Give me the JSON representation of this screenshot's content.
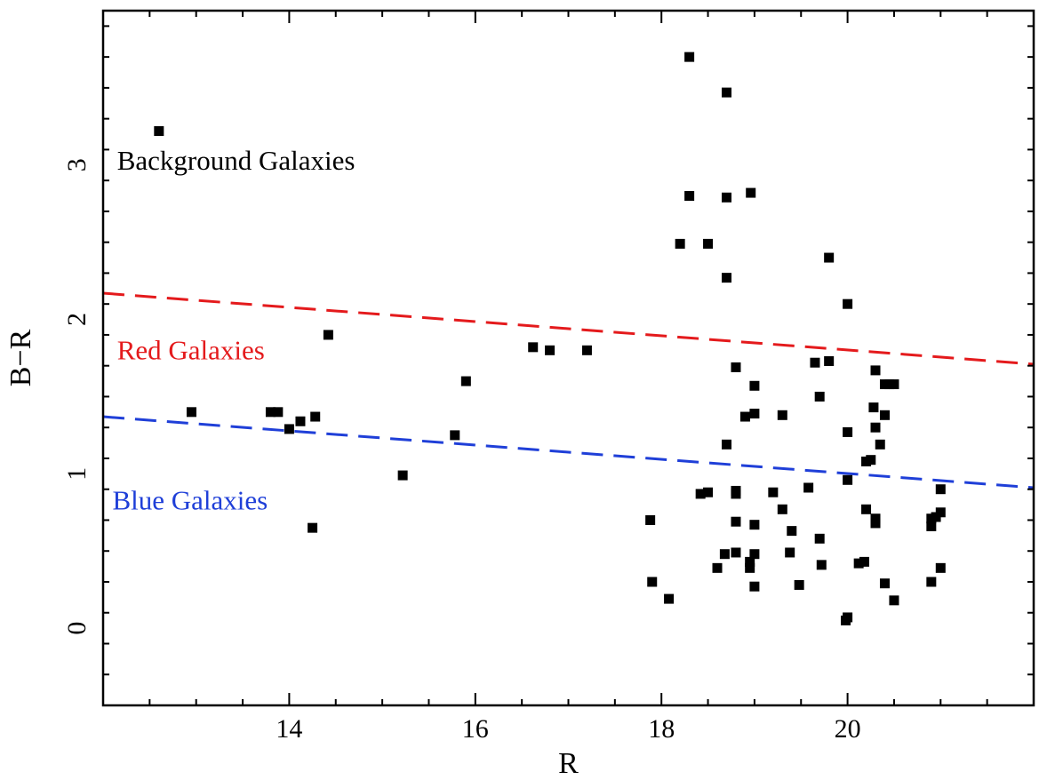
{
  "chart_data": {
    "type": "scatter",
    "xlabel": "R",
    "ylabel": "B−R",
    "xlim": [
      12.0,
      22.0
    ],
    "ylim": [
      -0.5,
      4.0
    ],
    "xticks": [
      14,
      16,
      18,
      20
    ],
    "yticks": [
      0,
      1,
      2,
      3
    ],
    "x_minor_step": 0.5,
    "y_minor_step": 0.2,
    "grid": false,
    "annotations": [
      {
        "name": "background-galaxies-label",
        "text": "Background Galaxies",
        "x": 12.15,
        "y": 2.97,
        "color": "#000000"
      },
      {
        "name": "red-galaxies-label",
        "text": "Red Galaxies",
        "x": 12.15,
        "y": 1.74,
        "color": "#e41a1c"
      },
      {
        "name": "blue-galaxies-label",
        "text": "Blue Galaxies",
        "x": 12.1,
        "y": 0.77,
        "color": "#1f3fd8"
      }
    ],
    "lines": [
      {
        "name": "red-dashed-line",
        "color": "#e41a1c",
        "dash": true,
        "x": [
          12.0,
          22.0
        ],
        "y": [
          2.17,
          1.71
        ]
      },
      {
        "name": "blue-dashed-line",
        "color": "#1f3fd8",
        "dash": true,
        "x": [
          12.0,
          22.0
        ],
        "y": [
          1.37,
          0.91
        ]
      }
    ],
    "series": [
      {
        "name": "galaxies",
        "marker": "square",
        "color": "#000000",
        "points": [
          [
            12.6,
            3.22
          ],
          [
            12.95,
            1.4
          ],
          [
            13.8,
            1.4
          ],
          [
            13.88,
            1.4
          ],
          [
            14.0,
            1.29
          ],
          [
            14.12,
            1.34
          ],
          [
            14.28,
            1.37
          ],
          [
            14.25,
            0.65
          ],
          [
            14.42,
            1.9
          ],
          [
            15.22,
            0.99
          ],
          [
            15.78,
            1.25
          ],
          [
            15.9,
            1.6
          ],
          [
            16.62,
            1.82
          ],
          [
            16.8,
            1.8
          ],
          [
            17.2,
            1.8
          ],
          [
            17.88,
            0.7
          ],
          [
            17.9,
            0.3
          ],
          [
            18.08,
            0.19
          ],
          [
            18.2,
            2.49
          ],
          [
            18.3,
            3.7
          ],
          [
            18.3,
            2.8
          ],
          [
            18.42,
            0.87
          ],
          [
            18.5,
            2.49
          ],
          [
            18.5,
            0.88
          ],
          [
            18.6,
            0.39
          ],
          [
            18.68,
            0.48
          ],
          [
            18.7,
            3.47
          ],
          [
            18.7,
            2.79
          ],
          [
            18.7,
            2.27
          ],
          [
            18.7,
            1.19
          ],
          [
            18.8,
            1.69
          ],
          [
            18.8,
            0.89
          ],
          [
            18.8,
            0.87
          ],
          [
            18.8,
            0.69
          ],
          [
            18.8,
            0.49
          ],
          [
            18.9,
            1.37
          ],
          [
            18.95,
            0.43
          ],
          [
            18.95,
            0.39
          ],
          [
            18.96,
            2.82
          ],
          [
            19.0,
            1.57
          ],
          [
            19.0,
            1.39
          ],
          [
            19.0,
            0.67
          ],
          [
            19.0,
            0.48
          ],
          [
            19.0,
            0.27
          ],
          [
            19.2,
            0.88
          ],
          [
            19.3,
            1.38
          ],
          [
            19.3,
            0.77
          ],
          [
            19.38,
            0.49
          ],
          [
            19.4,
            0.63
          ],
          [
            19.48,
            0.28
          ],
          [
            19.58,
            0.91
          ],
          [
            19.65,
            1.72
          ],
          [
            19.7,
            1.5
          ],
          [
            19.7,
            0.58
          ],
          [
            19.72,
            0.41
          ],
          [
            19.8,
            1.73
          ],
          [
            19.8,
            2.4
          ],
          [
            19.98,
            0.05
          ],
          [
            20.0,
            0.07
          ],
          [
            20.0,
            2.1
          ],
          [
            20.0,
            1.27
          ],
          [
            20.0,
            0.96
          ],
          [
            20.12,
            0.42
          ],
          [
            20.18,
            0.43
          ],
          [
            20.2,
            1.08
          ],
          [
            20.2,
            0.77
          ],
          [
            20.25,
            1.09
          ],
          [
            20.28,
            1.43
          ],
          [
            20.3,
            1.67
          ],
          [
            20.3,
            1.3
          ],
          [
            20.3,
            0.71
          ],
          [
            20.3,
            0.68
          ],
          [
            20.35,
            1.19
          ],
          [
            20.4,
            1.38
          ],
          [
            20.4,
            1.58
          ],
          [
            20.45,
            1.58
          ],
          [
            20.5,
            1.58
          ],
          [
            20.4,
            0.29
          ],
          [
            20.5,
            0.18
          ],
          [
            20.9,
            0.71
          ],
          [
            20.9,
            0.66
          ],
          [
            20.9,
            0.3
          ],
          [
            20.95,
            0.72
          ],
          [
            21.0,
            0.9
          ],
          [
            21.0,
            0.75
          ],
          [
            21.0,
            0.39
          ]
        ]
      }
    ]
  }
}
